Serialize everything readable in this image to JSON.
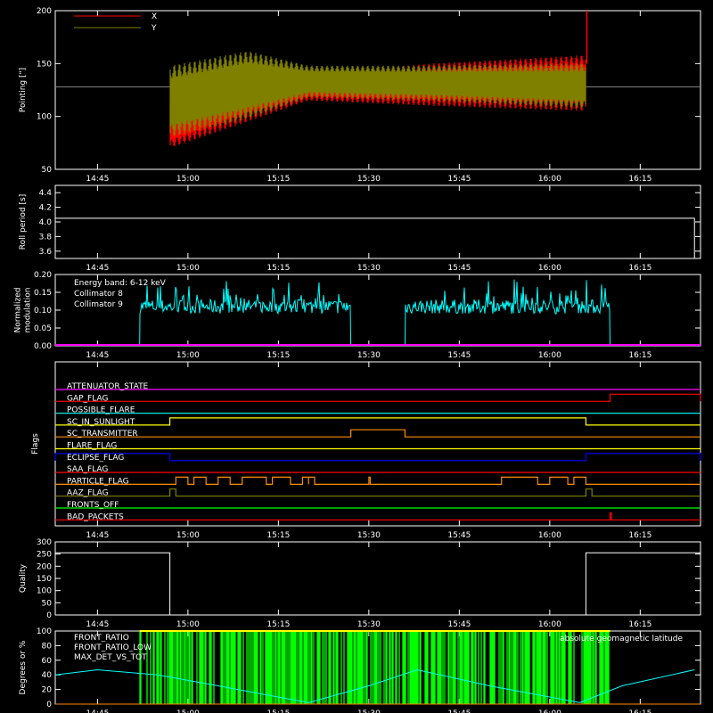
{
  "time_ticks": [
    "14:45",
    "15:00",
    "15:15",
    "15:30",
    "15:45",
    "16:00",
    "16:15"
  ],
  "colors": {
    "x_series": "#ff0000",
    "y_series": "#808000",
    "baseline": "#7f7f7f",
    "white": "#ffffff",
    "cyan": "#00ffff",
    "magenta": "#ff00ff",
    "green": "#00ff00",
    "yellow": "#ffff00",
    "orange": "#ff8c00"
  },
  "chart_data": [
    {
      "type": "line",
      "panel": "pointing",
      "ylabel": "Pointing [\"]",
      "ylim": [
        50,
        200
      ],
      "yticks": [
        "50",
        "100",
        "150",
        "200"
      ],
      "legend": [
        "X",
        "Y"
      ],
      "legend_placement": "top-left",
      "baseline": 128,
      "active_range": [
        "14:57",
        "16:06"
      ],
      "series": [
        {
          "name": "X",
          "envelope": [
            {
              "t": "14:57",
              "min": 70,
              "max": 115
            },
            {
              "t": "15:10",
              "min": 95,
              "max": 150
            },
            {
              "t": "15:20",
              "min": 115,
              "max": 140
            },
            {
              "t": "15:40",
              "min": 110,
              "max": 150
            },
            {
              "t": "16:06",
              "min": 105,
              "max": 158
            }
          ]
        },
        {
          "name": "Y",
          "envelope": [
            {
              "t": "14:57",
              "min": 80,
              "max": 148
            },
            {
              "t": "15:10",
              "min": 98,
              "max": 162
            },
            {
              "t": "15:20",
              "min": 118,
              "max": 148
            },
            {
              "t": "15:40",
              "min": 115,
              "max": 148
            },
            {
              "t": "16:06",
              "min": 108,
              "max": 150
            }
          ]
        }
      ]
    },
    {
      "type": "line",
      "panel": "roll",
      "ylabel": "Roll period [s]",
      "ylim": [
        3.5,
        4.5
      ],
      "yticks": [
        "3.6",
        "3.8",
        "4.0",
        "4.2",
        "4.4"
      ],
      "value": 4.05,
      "end_time": "16:24"
    },
    {
      "type": "line",
      "panel": "modulation",
      "ylabel": "Normalized modulation",
      "ylim": [
        0,
        0.2
      ],
      "yticks": [
        "0.00",
        "0.05",
        "0.10",
        "0.15",
        "0.20"
      ],
      "annotation": "Energy band: 6-12 keV",
      "legend": [
        "Collimator 8",
        "Collimator 9"
      ],
      "series": [
        {
          "name": "Collimator 8",
          "segments": [
            [
              "14:52",
              "15:27"
            ],
            [
              "15:36",
              "16:10"
            ]
          ],
          "level": 0.11,
          "noise": 0.02
        },
        {
          "name": "Collimator 9",
          "level": 0.0
        }
      ]
    },
    {
      "type": "table",
      "panel": "flags",
      "ylabel": "Flags",
      "flags": [
        {
          "name": "ATTENUATOR_STATE",
          "color": "#ff00ff",
          "intervals": []
        },
        {
          "name": "GAP_FLAG",
          "color": "#ff0000",
          "intervals": [
            [
              "16:10",
              "16:25"
            ]
          ]
        },
        {
          "name": "POSSIBLE_FLARE",
          "color": "#00e5e5",
          "intervals": []
        },
        {
          "name": "SC_IN_SUNLIGHT",
          "color": "#ffff00",
          "intervals": [
            [
              "14:57",
              "16:06"
            ]
          ]
        },
        {
          "name": "SC_TRANSMITTER",
          "color": "#ff8c00",
          "intervals": [
            [
              "15:27",
              "15:36"
            ]
          ]
        },
        {
          "name": "FLARE_FLAG",
          "color": "#ffff00",
          "intervals": []
        },
        {
          "name": "ECLIPSE_FLAG",
          "color": "#0000ff",
          "intervals": [
            [
              "14:38",
              "14:57"
            ],
            [
              "16:06",
              "16:25"
            ]
          ]
        },
        {
          "name": "SAA_FLAG",
          "color": "#ff0000",
          "intervals": []
        },
        {
          "name": "PARTICLE_FLAG",
          "color": "#ff8c00",
          "intervals": [
            [
              "14:58",
              "15:00"
            ],
            [
              "15:01",
              "15:03"
            ],
            [
              "15:05",
              "15:07"
            ],
            [
              "15:09",
              "15:13"
            ],
            [
              "15:14",
              "15:17"
            ],
            [
              "15:19",
              "15:20"
            ],
            [
              "15:20",
              "15:21"
            ],
            [
              "15:30",
              "15:30"
            ],
            [
              "15:52",
              "15:58"
            ],
            [
              "16:00",
              "16:03"
            ],
            [
              "16:04",
              "16:06"
            ]
          ]
        },
        {
          "name": "AAZ_FLAG",
          "color": "#808000",
          "intervals": [
            [
              "14:57",
              "14:58"
            ],
            [
              "16:06",
              "16:07"
            ]
          ]
        },
        {
          "name": "FRONTS_OFF",
          "color": "#00ff00",
          "intervals": []
        },
        {
          "name": "BAD_PACKETS",
          "color": "#ff0000",
          "intervals": [
            [
              "16:10",
              "16:10"
            ]
          ]
        }
      ]
    },
    {
      "type": "line",
      "panel": "quality",
      "ylabel": "Quality",
      "ylim": [
        0,
        300
      ],
      "yticks": [
        "0",
        "50",
        "100",
        "150",
        "200",
        "250",
        "300"
      ],
      "segments": [
        {
          "from": "14:38",
          "to": "14:57",
          "value": 255
        },
        {
          "from": "14:57",
          "to": "16:06",
          "value": 0
        },
        {
          "from": "16:06",
          "to": "16:25",
          "value": 255
        }
      ]
    },
    {
      "type": "line",
      "panel": "fronts",
      "ylabel": "Degrees or %",
      "ylim": [
        0,
        100
      ],
      "yticks": [
        "0",
        "20",
        "40",
        "60",
        "80",
        "100"
      ],
      "legend": [
        "FRONT_RATIO",
        "FRONT_RATIO_LOW",
        "MAX_DET_VS_TOT"
      ],
      "annotation": "absolute geomagnetic latitude",
      "series": [
        {
          "name": "FRONT_RATIO",
          "color": "#00ff00",
          "active_range": [
            "14:52",
            "16:10"
          ]
        },
        {
          "name": "absolute geomagnetic latitude",
          "color": "#00ffff",
          "points": [
            {
              "t": "14:38",
              "v": 40
            },
            {
              "t": "14:45",
              "v": 47
            },
            {
              "t": "14:55",
              "v": 40
            },
            {
              "t": "15:05",
              "v": 25
            },
            {
              "t": "15:20",
              "v": 2
            },
            {
              "t": "15:30",
              "v": 25
            },
            {
              "t": "15:38",
              "v": 47
            },
            {
              "t": "15:50",
              "v": 25
            },
            {
              "t": "16:05",
              "v": 2
            },
            {
              "t": "16:12",
              "v": 25
            },
            {
              "t": "16:24",
              "v": 47
            }
          ]
        }
      ]
    }
  ]
}
